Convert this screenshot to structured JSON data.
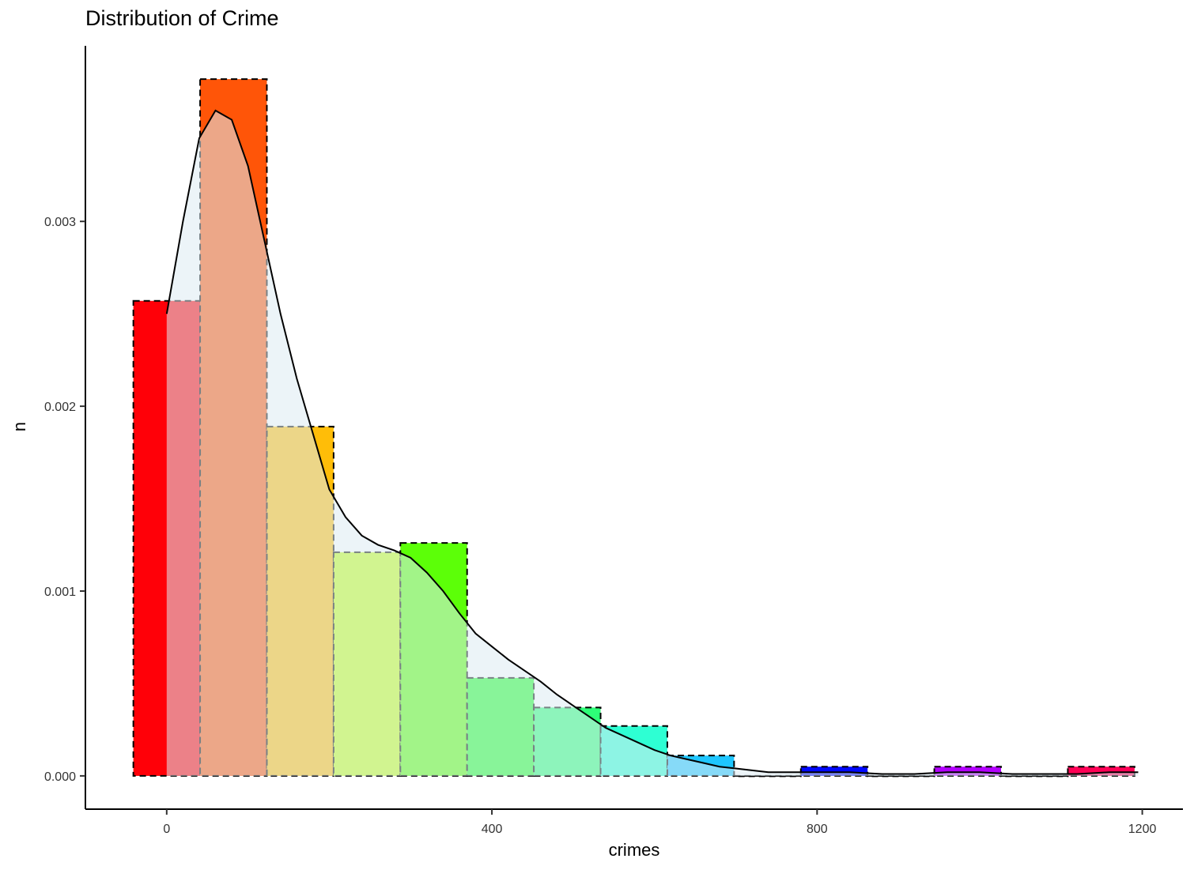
{
  "chart_data": {
    "type": "bar",
    "title": "Distribution of Crime",
    "xlabel": "crimes",
    "ylabel": "n",
    "xlim": [
      -100,
      1250
    ],
    "ylim": [
      -0.00018,
      0.00395
    ],
    "x_ticks": [
      0,
      400,
      800,
      1200
    ],
    "y_ticks": [
      0.0,
      0.001,
      0.002,
      0.003
    ],
    "x_tick_labels": [
      "0",
      "400",
      "800",
      "1200"
    ],
    "y_tick_labels": [
      "0.000",
      "0.001",
      "0.002",
      "0.003"
    ],
    "grid": false,
    "histogram": {
      "series_name": "",
      "bin_width": 82.1,
      "bins": [
        {
          "x0": -41.0,
          "x1": 41.1,
          "value": 0.00257,
          "color": "#ff0008"
        },
        {
          "x0": 41.1,
          "x1": 123.2,
          "value": 0.00377,
          "color": "#ff5508"
        },
        {
          "x0": 123.2,
          "x1": 205.3,
          "value": 0.00189,
          "color": "#ffbd08"
        },
        {
          "x0": 205.3,
          "x1": 287.4,
          "value": 0.00121,
          "color": "#c4ff1a"
        },
        {
          "x0": 287.4,
          "x1": 369.5,
          "value": 0.00126,
          "color": "#5cff08"
        },
        {
          "x0": 369.5,
          "x1": 451.6,
          "value": 0.00053,
          "color": "#22ff2e"
        },
        {
          "x0": 451.6,
          "x1": 533.7,
          "value": 0.00037,
          "color": "#2eff78"
        },
        {
          "x0": 533.7,
          "x1": 615.8,
          "value": 0.00027,
          "color": "#2effd3"
        },
        {
          "x0": 615.8,
          "x1": 697.9,
          "value": 0.00011,
          "color": "#1ec6ff"
        },
        {
          "x0": 697.9,
          "x1": 780.0,
          "value": 0.0,
          "color": "#1e78ff"
        },
        {
          "x0": 780.0,
          "x1": 862.1,
          "value": 5e-05,
          "color": "#0008ff"
        },
        {
          "x0": 862.1,
          "x1": 944.2,
          "value": 0.0,
          "color": "#5500ff"
        },
        {
          "x0": 944.2,
          "x1": 1026.3,
          "value": 5e-05,
          "color": "#b400ff"
        },
        {
          "x0": 1026.3,
          "x1": 1108.4,
          "value": 0.0,
          "color": "#ff00cc"
        },
        {
          "x0": 1108.4,
          "x1": 1190.5,
          "value": 5e-05,
          "color": "#ff0055"
        }
      ]
    },
    "density": {
      "series_name": "",
      "fill_color": "#dcebf2",
      "line_color": "#000000",
      "x": [
        0,
        20,
        40,
        60,
        80,
        100,
        120,
        140,
        160,
        180,
        200,
        220,
        240,
        260,
        280,
        300,
        320,
        340,
        360,
        380,
        400,
        420,
        440,
        460,
        480,
        500,
        520,
        540,
        560,
        580,
        600,
        620,
        640,
        660,
        680,
        700,
        720,
        740,
        760,
        780,
        800,
        840,
        880,
        920,
        960,
        1000,
        1040,
        1080,
        1120,
        1160,
        1195
      ],
      "y": [
        0.0025,
        0.003,
        0.00345,
        0.0036,
        0.00355,
        0.0033,
        0.0029,
        0.0025,
        0.00215,
        0.00185,
        0.00155,
        0.0014,
        0.0013,
        0.00125,
        0.00122,
        0.00118,
        0.0011,
        0.001,
        0.00088,
        0.00077,
        0.0007,
        0.00063,
        0.00057,
        0.00051,
        0.00044,
        0.00038,
        0.00032,
        0.00026,
        0.00022,
        0.00018,
        0.00014,
        0.00011,
        9e-05,
        7e-05,
        5e-05,
        4e-05,
        3e-05,
        2e-05,
        2e-05,
        2e-05,
        2e-05,
        2e-05,
        1e-05,
        1e-05,
        2e-05,
        2e-05,
        1e-05,
        1e-05,
        1e-05,
        2e-05,
        2e-05
      ]
    }
  }
}
